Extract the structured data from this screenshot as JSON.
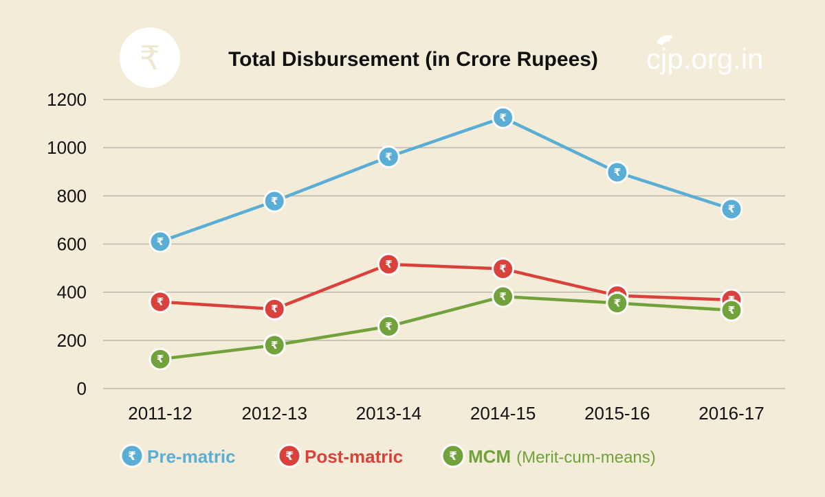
{
  "colors": {
    "background": "#f2ecd9",
    "grid": "#b9b6ab",
    "pre_matric": "#5aaed6",
    "post_matric": "#d9413a",
    "mcm": "#71a23b",
    "marker_ring": "#ffffff"
  },
  "badge": {
    "icon": "rupee-icon",
    "glyph": "₹"
  },
  "logo": {
    "icon": "bird-icon",
    "text": "cjp.org.in"
  },
  "chart_data": {
    "type": "line",
    "title": "Total Disbursement (in Crore Rupees)",
    "xlabel": "",
    "ylabel": "",
    "categories": [
      "2011-12",
      "2012-13",
      "2013-14",
      "2014-15",
      "2015-16",
      "2016-17"
    ],
    "ylim": [
      0,
      1200
    ],
    "yticks": [
      0,
      200,
      400,
      600,
      800,
      1000,
      1200
    ],
    "grid": true,
    "legend": "bottom",
    "marker_glyph": "₹",
    "series": [
      {
        "key": "pre_matric",
        "name": "Pre-matric",
        "sub": "",
        "values": [
          610,
          778,
          962,
          1125,
          898,
          745
        ]
      },
      {
        "key": "post_matric",
        "name": "Post-matric",
        "sub": "",
        "values": [
          360,
          330,
          516,
          497,
          386,
          368
        ]
      },
      {
        "key": "mcm",
        "name": "MCM",
        "sub": "(Merit-cum-means)",
        "values": [
          122,
          180,
          258,
          382,
          355,
          325
        ]
      }
    ]
  }
}
